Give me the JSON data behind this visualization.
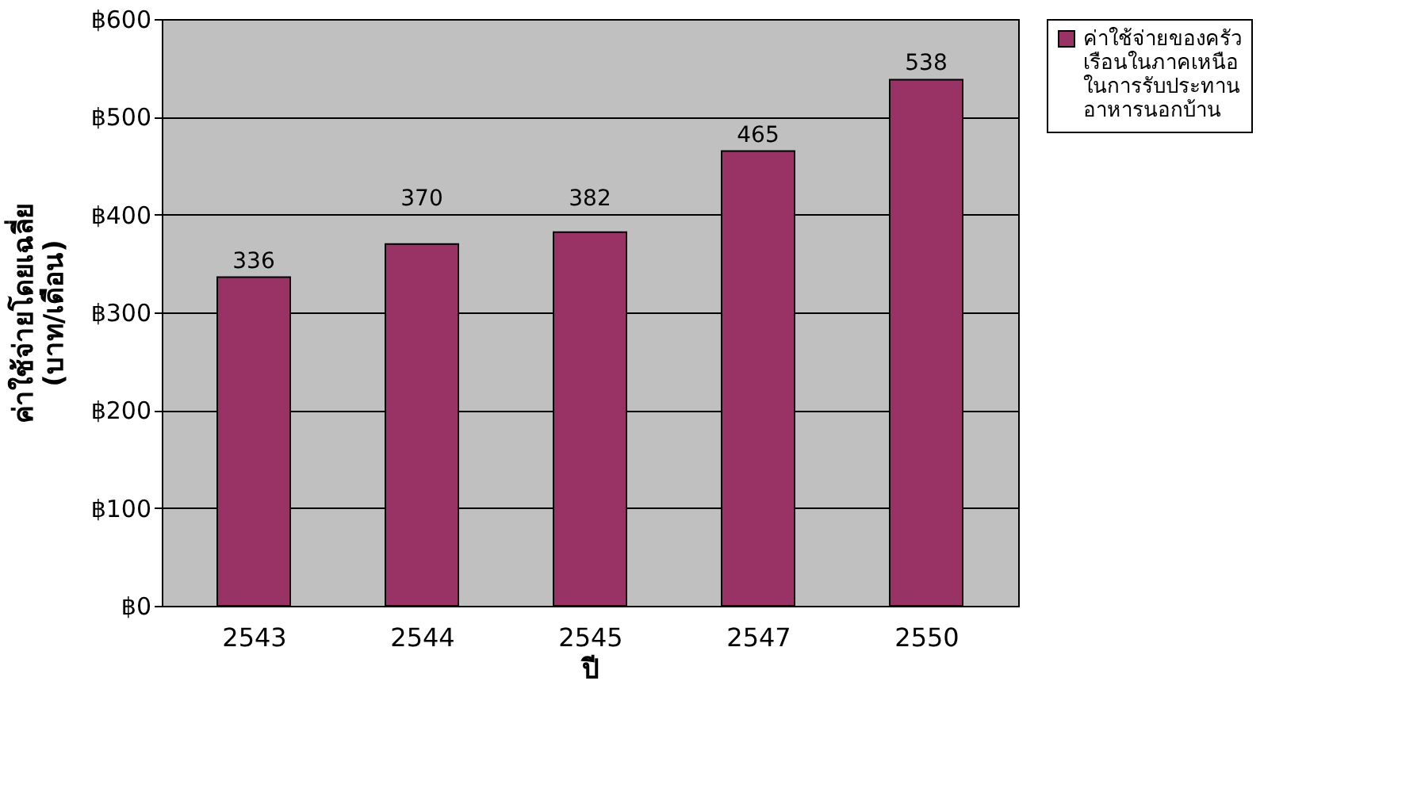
{
  "chart_data": {
    "type": "bar",
    "xlabel": "ปี",
    "ylabel": "ค่าใช้จ่ายโดยเฉลี่ย (บาท/เดือน)",
    "categories": [
      "2543",
      "2544",
      "2545",
      "2547",
      "2550"
    ],
    "series": [
      {
        "name": "ค่าใช้จ่ายของครัวเรือนในภาคเหนือในการรับประทานอาหารนอกบ้าน",
        "color": "#993366",
        "values": [
          336,
          370,
          382,
          465,
          538
        ]
      }
    ],
    "ylim": [
      0,
      600
    ],
    "yticks": [
      {
        "value": 0,
        "label": "฿0"
      },
      {
        "value": 100,
        "label": "฿100"
      },
      {
        "value": 200,
        "label": "฿200"
      },
      {
        "value": 300,
        "label": "฿300"
      },
      {
        "value": 400,
        "label": "฿400"
      },
      {
        "value": 500,
        "label": "฿500"
      },
      {
        "value": 600,
        "label": "฿600"
      }
    ],
    "grid": "y",
    "legend": "right",
    "data_labels": true
  }
}
